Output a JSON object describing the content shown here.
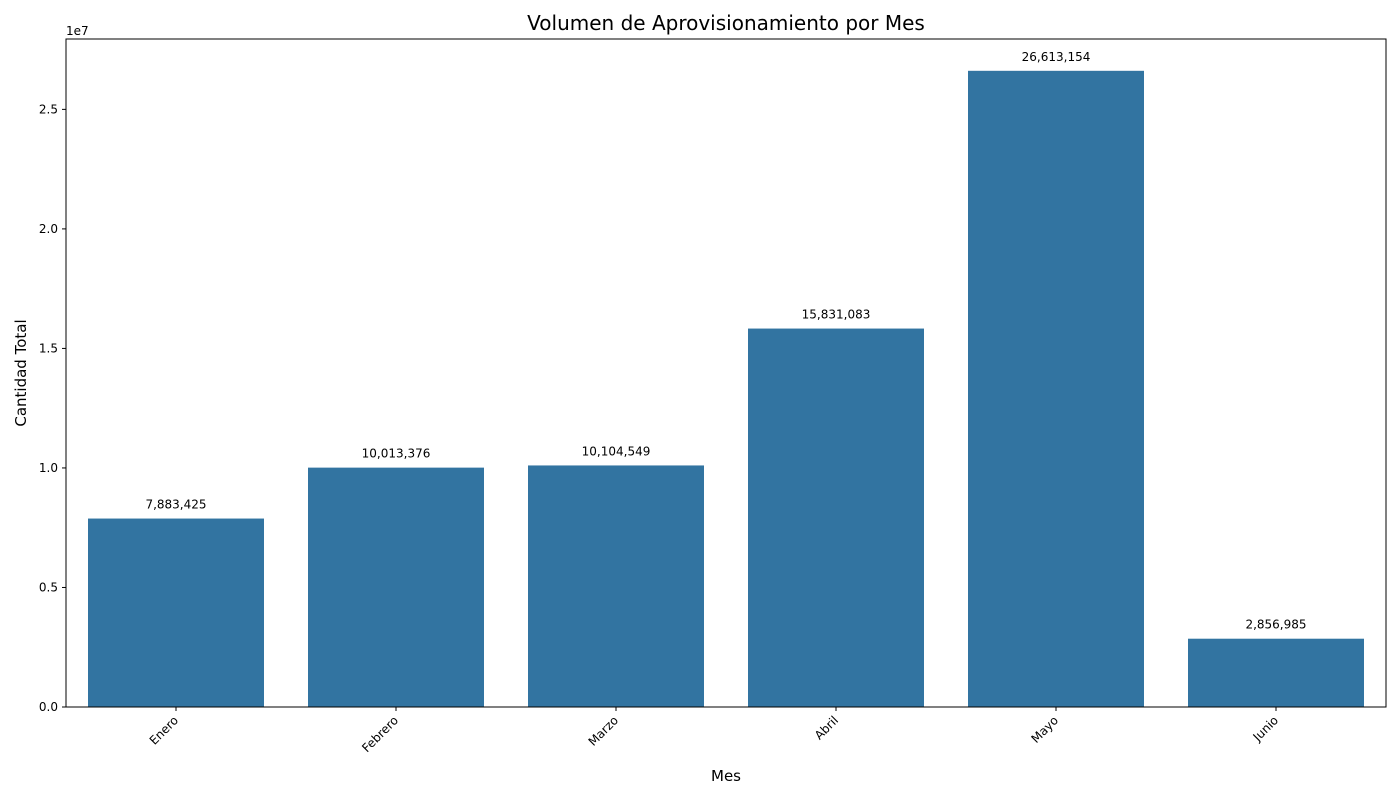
{
  "chart_data": {
    "type": "bar",
    "title": "Volumen de Aprovisionamiento por Mes",
    "xlabel": "Mes",
    "ylabel": "Cantidad Total",
    "y_offset_label": "1e7",
    "categories": [
      "Enero",
      "Febrero",
      "Marzo",
      "Abril",
      "Mayo",
      "Junio"
    ],
    "values": [
      7883425,
      10013376,
      10104549,
      15831083,
      26613154,
      2856985
    ],
    "data_labels": [
      "7,883,425",
      "10,013,376",
      "10,104,549",
      "15,831,083",
      "26,613,154",
      "2,856,985"
    ],
    "y_ticks": [
      0,
      5000000,
      10000000,
      15000000,
      20000000,
      25000000
    ],
    "y_tick_labels": [
      "0.0",
      "0.5",
      "1.0",
      "1.5",
      "2.0",
      "2.5"
    ],
    "ylim": [
      0,
      27943812
    ],
    "bar_color": "#3274a1",
    "grid": false,
    "x_tick_rotation_deg": 45
  }
}
